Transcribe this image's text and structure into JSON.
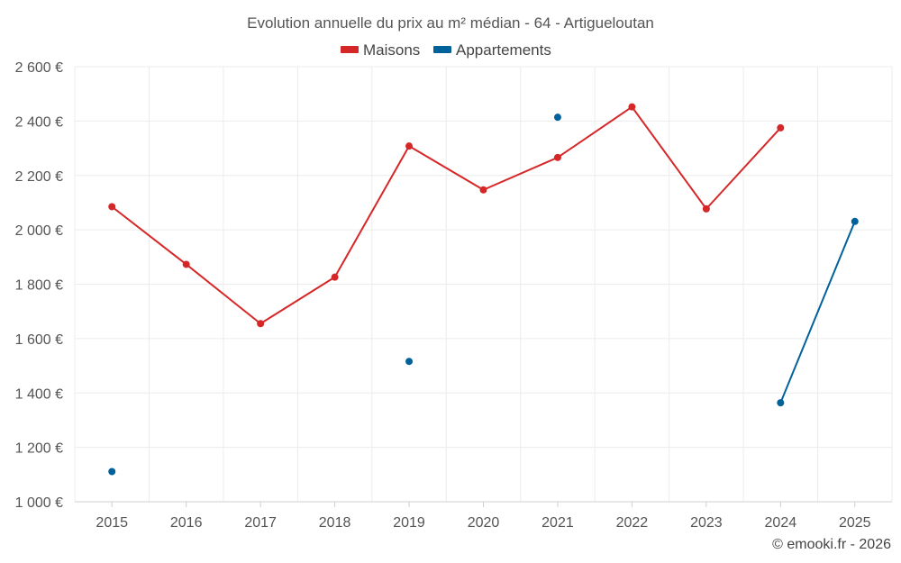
{
  "chart_data": {
    "type": "line",
    "title": "Evolution annuelle du prix au m² médian - 64 - Artigueloutan",
    "categories": [
      "2015",
      "2016",
      "2017",
      "2018",
      "2019",
      "2020",
      "2021",
      "2022",
      "2023",
      "2024",
      "2025"
    ],
    "series": [
      {
        "name": "Maisons",
        "color": "#d62728",
        "values": [
          2085,
          1873,
          1655,
          1826,
          2308,
          2147,
          2266,
          2452,
          2077,
          2375,
          null
        ]
      },
      {
        "name": "Appartements",
        "color": "#00629b",
        "values": [
          1111,
          null,
          null,
          null,
          1516,
          null,
          2414,
          null,
          null,
          1364,
          2031
        ]
      }
    ],
    "ylim": [
      1000,
      2600
    ],
    "yticks": [
      1000,
      1200,
      1400,
      1600,
      1800,
      2000,
      2200,
      2400,
      2600
    ],
    "ytick_labels": [
      "1 000 €",
      "1 200 €",
      "1 400 €",
      "1 600 €",
      "1 800 €",
      "2 000 €",
      "2 200 €",
      "2 400 €",
      "2 600 €"
    ],
    "xlabel": "",
    "ylabel": "",
    "grid": true,
    "legend_position": "top-center"
  },
  "credit": "© emooki.fr - 2026"
}
